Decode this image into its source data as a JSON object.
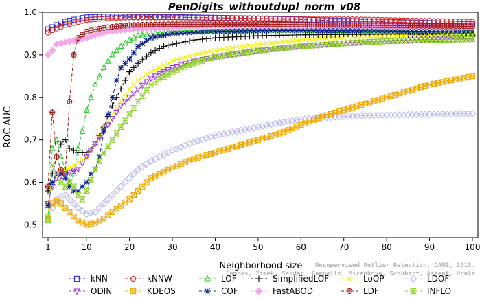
{
  "chart_data": {
    "type": "line",
    "title": "PenDigits_withoutdupl_norm_v08",
    "xlabel": "Neighborhood size",
    "ylabel": "ROC AUC",
    "xlim": [
      1,
      100
    ],
    "ylim": [
      0.47,
      1.0
    ],
    "xticks": [
      1,
      10,
      20,
      30,
      40,
      50,
      60,
      70,
      80,
      90,
      100
    ],
    "yticks": [
      0.5,
      0.6,
      0.7,
      0.8,
      0.9,
      1.0
    ],
    "xtick_labels": [
      "1",
      "10",
      "20",
      "30",
      "40",
      "50",
      "60",
      "70",
      "80",
      "90",
      "100"
    ],
    "ytick_labels": [
      "0.5",
      "0.6",
      "0.7",
      "0.8",
      "0.9",
      "1.0"
    ],
    "grid": false,
    "legend_position": "bottom",
    "series": [
      {
        "name": "kNN",
        "color": "#2b2bd9",
        "marker": "square",
        "dash": "5,3",
        "points": [
          [
            1,
            0.96
          ],
          [
            2,
            0.965
          ],
          [
            3,
            0.97
          ],
          [
            5,
            0.978
          ],
          [
            8,
            0.985
          ],
          [
            10,
            0.988
          ],
          [
            15,
            0.99
          ],
          [
            20,
            0.99
          ],
          [
            30,
            0.989
          ],
          [
            40,
            0.987
          ],
          [
            50,
            0.985
          ],
          [
            60,
            0.983
          ],
          [
            70,
            0.98
          ],
          [
            80,
            0.978
          ],
          [
            90,
            0.975
          ],
          [
            100,
            0.972
          ]
        ]
      },
      {
        "name": "kNNW",
        "color": "#d62a2a",
        "marker": "circle",
        "dash": "5,3",
        "points": [
          [
            1,
            0.952
          ],
          [
            2,
            0.958
          ],
          [
            3,
            0.962
          ],
          [
            5,
            0.97
          ],
          [
            8,
            0.977
          ],
          [
            10,
            0.982
          ],
          [
            15,
            0.986
          ],
          [
            20,
            0.988
          ],
          [
            30,
            0.988
          ],
          [
            40,
            0.987
          ],
          [
            50,
            0.986
          ],
          [
            60,
            0.985
          ],
          [
            70,
            0.984
          ],
          [
            80,
            0.982
          ],
          [
            90,
            0.98
          ],
          [
            100,
            0.978
          ]
        ]
      },
      {
        "name": "LOF",
        "color": "#1ec81e",
        "marker": "triangle-up",
        "dash": "5,3",
        "points": [
          [
            1,
            0.51
          ],
          [
            2,
            0.68
          ],
          [
            3,
            0.7
          ],
          [
            4,
            0.66
          ],
          [
            5,
            0.63
          ],
          [
            6,
            0.6
          ],
          [
            7,
            0.62
          ],
          [
            8,
            0.68
          ],
          [
            9,
            0.72
          ],
          [
            10,
            0.77
          ],
          [
            12,
            0.83
          ],
          [
            14,
            0.87
          ],
          [
            16,
            0.9
          ],
          [
            18,
            0.92
          ],
          [
            20,
            0.935
          ],
          [
            22,
            0.945
          ],
          [
            25,
            0.95
          ],
          [
            30,
            0.955
          ],
          [
            40,
            0.958
          ],
          [
            50,
            0.958
          ],
          [
            60,
            0.958
          ],
          [
            70,
            0.957
          ],
          [
            80,
            0.956
          ],
          [
            90,
            0.955
          ],
          [
            100,
            0.953
          ]
        ]
      },
      {
        "name": "SimplifiedLOF",
        "color": "#000000",
        "marker": "plus",
        "dash": "5,3",
        "points": [
          [
            1,
            0.58
          ],
          [
            2,
            0.62
          ],
          [
            3,
            0.66
          ],
          [
            4,
            0.69
          ],
          [
            5,
            0.7
          ],
          [
            6,
            0.68
          ],
          [
            7,
            0.675
          ],
          [
            8,
            0.67
          ],
          [
            10,
            0.67
          ],
          [
            12,
            0.69
          ],
          [
            14,
            0.73
          ],
          [
            16,
            0.78
          ],
          [
            18,
            0.82
          ],
          [
            20,
            0.86
          ],
          [
            22,
            0.88
          ],
          [
            25,
            0.905
          ],
          [
            28,
            0.92
          ],
          [
            30,
            0.925
          ],
          [
            35,
            0.935
          ],
          [
            40,
            0.94
          ],
          [
            50,
            0.945
          ],
          [
            60,
            0.947
          ],
          [
            70,
            0.948
          ],
          [
            80,
            0.948
          ],
          [
            90,
            0.947
          ],
          [
            100,
            0.946
          ]
        ]
      },
      {
        "name": "LoOP",
        "color": "#f0f000",
        "marker": "cross",
        "dash": "5,3",
        "points": [
          [
            1,
            0.55
          ],
          [
            2,
            0.6
          ],
          [
            3,
            0.62
          ],
          [
            5,
            0.63
          ],
          [
            7,
            0.64
          ],
          [
            10,
            0.66
          ],
          [
            12,
            0.69
          ],
          [
            14,
            0.73
          ],
          [
            16,
            0.76
          ],
          [
            18,
            0.79
          ],
          [
            20,
            0.82
          ],
          [
            22,
            0.84
          ],
          [
            25,
            0.86
          ],
          [
            30,
            0.885
          ],
          [
            35,
            0.9
          ],
          [
            40,
            0.91
          ],
          [
            50,
            0.925
          ],
          [
            60,
            0.935
          ],
          [
            70,
            0.94
          ],
          [
            80,
            0.944
          ],
          [
            90,
            0.946
          ],
          [
            100,
            0.947
          ]
        ]
      },
      {
        "name": "LDOF",
        "color": "#b7b7f0",
        "marker": "diamond",
        "dash": "5,3",
        "points": [
          [
            1,
            0.52
          ],
          [
            2,
            0.54
          ],
          [
            3,
            0.56
          ],
          [
            5,
            0.57
          ],
          [
            8,
            0.54
          ],
          [
            10,
            0.525
          ],
          [
            12,
            0.53
          ],
          [
            14,
            0.55
          ],
          [
            16,
            0.57
          ],
          [
            18,
            0.59
          ],
          [
            20,
            0.61
          ],
          [
            22,
            0.63
          ],
          [
            25,
            0.65
          ],
          [
            30,
            0.675
          ],
          [
            35,
            0.695
          ],
          [
            40,
            0.71
          ],
          [
            45,
            0.72
          ],
          [
            50,
            0.73
          ],
          [
            55,
            0.74
          ],
          [
            60,
            0.748
          ],
          [
            65,
            0.752
          ],
          [
            70,
            0.755
          ],
          [
            75,
            0.757
          ],
          [
            80,
            0.758
          ],
          [
            85,
            0.759
          ],
          [
            90,
            0.76
          ],
          [
            95,
            0.761
          ],
          [
            100,
            0.762
          ]
        ]
      },
      {
        "name": "ODIN",
        "color": "#9b30d0",
        "marker": "triangle-down",
        "dash": "5,3",
        "points": [
          [
            1,
            0.55
          ],
          [
            2,
            0.59
          ],
          [
            3,
            0.61
          ],
          [
            5,
            0.62
          ],
          [
            8,
            0.63
          ],
          [
            10,
            0.66
          ],
          [
            12,
            0.69
          ],
          [
            14,
            0.72
          ],
          [
            16,
            0.75
          ],
          [
            18,
            0.78
          ],
          [
            20,
            0.8
          ],
          [
            22,
            0.82
          ],
          [
            25,
            0.845
          ],
          [
            30,
            0.87
          ],
          [
            35,
            0.885
          ],
          [
            40,
            0.895
          ],
          [
            50,
            0.91
          ],
          [
            60,
            0.92
          ],
          [
            70,
            0.928
          ],
          [
            80,
            0.933
          ],
          [
            90,
            0.936
          ],
          [
            100,
            0.938
          ]
        ]
      },
      {
        "name": "KDEOS",
        "color": "#f0a800",
        "marker": "square-x",
        "dash": "5,3",
        "points": [
          [
            1,
            0.515
          ],
          [
            2,
            0.55
          ],
          [
            3,
            0.555
          ],
          [
            4,
            0.55
          ],
          [
            6,
            0.53
          ],
          [
            8,
            0.51
          ],
          [
            10,
            0.5
          ],
          [
            12,
            0.505
          ],
          [
            14,
            0.515
          ],
          [
            16,
            0.53
          ],
          [
            18,
            0.545
          ],
          [
            20,
            0.56
          ],
          [
            22,
            0.58
          ],
          [
            25,
            0.61
          ],
          [
            30,
            0.635
          ],
          [
            35,
            0.655
          ],
          [
            40,
            0.67
          ],
          [
            45,
            0.685
          ],
          [
            50,
            0.7
          ],
          [
            55,
            0.715
          ],
          [
            60,
            0.735
          ],
          [
            65,
            0.755
          ],
          [
            70,
            0.77
          ],
          [
            75,
            0.785
          ],
          [
            80,
            0.8
          ],
          [
            85,
            0.815
          ],
          [
            90,
            0.83
          ],
          [
            95,
            0.84
          ],
          [
            100,
            0.85
          ]
        ]
      },
      {
        "name": "COF",
        "color": "#0a1e8c",
        "marker": "asterisk",
        "dash": "5,3",
        "points": [
          [
            1,
            0.545
          ],
          [
            2,
            0.6
          ],
          [
            3,
            0.62
          ],
          [
            4,
            0.62
          ],
          [
            5,
            0.61
          ],
          [
            6,
            0.59
          ],
          [
            7,
            0.58
          ],
          [
            8,
            0.58
          ],
          [
            10,
            0.6
          ],
          [
            11,
            0.62
          ],
          [
            12,
            0.63
          ],
          [
            13,
            0.66
          ],
          [
            14,
            0.72
          ],
          [
            15,
            0.76
          ],
          [
            16,
            0.8
          ],
          [
            17,
            0.84
          ],
          [
            18,
            0.87
          ],
          [
            19,
            0.88
          ],
          [
            20,
            0.89
          ],
          [
            22,
            0.92
          ],
          [
            25,
            0.94
          ],
          [
            30,
            0.95
          ],
          [
            40,
            0.955
          ],
          [
            50,
            0.957
          ],
          [
            60,
            0.957
          ],
          [
            70,
            0.957
          ],
          [
            80,
            0.956
          ],
          [
            90,
            0.955
          ],
          [
            100,
            0.954
          ]
        ]
      },
      {
        "name": "FastABOD",
        "color": "#f4a8e8",
        "marker": "diamond-filled",
        "dash": "5,3",
        "points": [
          [
            1,
            0.9
          ],
          [
            2,
            0.91
          ],
          [
            3,
            0.925
          ],
          [
            5,
            0.93
          ],
          [
            8,
            0.935
          ],
          [
            10,
            0.94
          ],
          [
            15,
            0.955
          ],
          [
            20,
            0.96
          ],
          [
            30,
            0.965
          ],
          [
            40,
            0.968
          ],
          [
            50,
            0.968
          ],
          [
            60,
            0.968
          ],
          [
            70,
            0.968
          ],
          [
            80,
            0.967
          ],
          [
            90,
            0.966
          ],
          [
            100,
            0.965
          ]
        ]
      },
      {
        "name": "LDF",
        "color": "#a01818",
        "marker": "circle-plus",
        "dash": "5,3",
        "points": [
          [
            1,
            0.59
          ],
          [
            2,
            0.765
          ],
          [
            3,
            0.66
          ],
          [
            4,
            0.63
          ],
          [
            5,
            0.62
          ],
          [
            6,
            0.79
          ],
          [
            7,
            0.9
          ],
          [
            8,
            0.94
          ],
          [
            10,
            0.955
          ],
          [
            12,
            0.96
          ],
          [
            15,
            0.965
          ],
          [
            20,
            0.97
          ],
          [
            30,
            0.972
          ],
          [
            40,
            0.972
          ],
          [
            50,
            0.972
          ],
          [
            60,
            0.971
          ],
          [
            70,
            0.97
          ],
          [
            80,
            0.969
          ],
          [
            90,
            0.968
          ],
          [
            100,
            0.967
          ]
        ]
      },
      {
        "name": "INFLO",
        "color": "#8cd028",
        "marker": "hourglass",
        "dash": "5,3",
        "points": [
          [
            1,
            0.52
          ],
          [
            2,
            0.64
          ],
          [
            3,
            0.62
          ],
          [
            4,
            0.6
          ],
          [
            5,
            0.59
          ],
          [
            6,
            0.6
          ],
          [
            7,
            0.59
          ],
          [
            8,
            0.57
          ],
          [
            9,
            0.56
          ],
          [
            10,
            0.58
          ],
          [
            12,
            0.63
          ],
          [
            14,
            0.67
          ],
          [
            16,
            0.7
          ],
          [
            18,
            0.73
          ],
          [
            20,
            0.76
          ],
          [
            22,
            0.79
          ],
          [
            25,
            0.83
          ],
          [
            30,
            0.86
          ],
          [
            35,
            0.88
          ],
          [
            40,
            0.895
          ],
          [
            50,
            0.91
          ],
          [
            60,
            0.92
          ],
          [
            70,
            0.927
          ],
          [
            80,
            0.932
          ],
          [
            90,
            0.935
          ],
          [
            100,
            0.937
          ]
        ]
      }
    ]
  },
  "watermark": {
    "line1": "Unsupervised Outlier Detection. DAMI, 2015.",
    "line2": "Campos, Zimek, Sander, Campello, Micenkova, Schubert, Assent, Houle"
  }
}
